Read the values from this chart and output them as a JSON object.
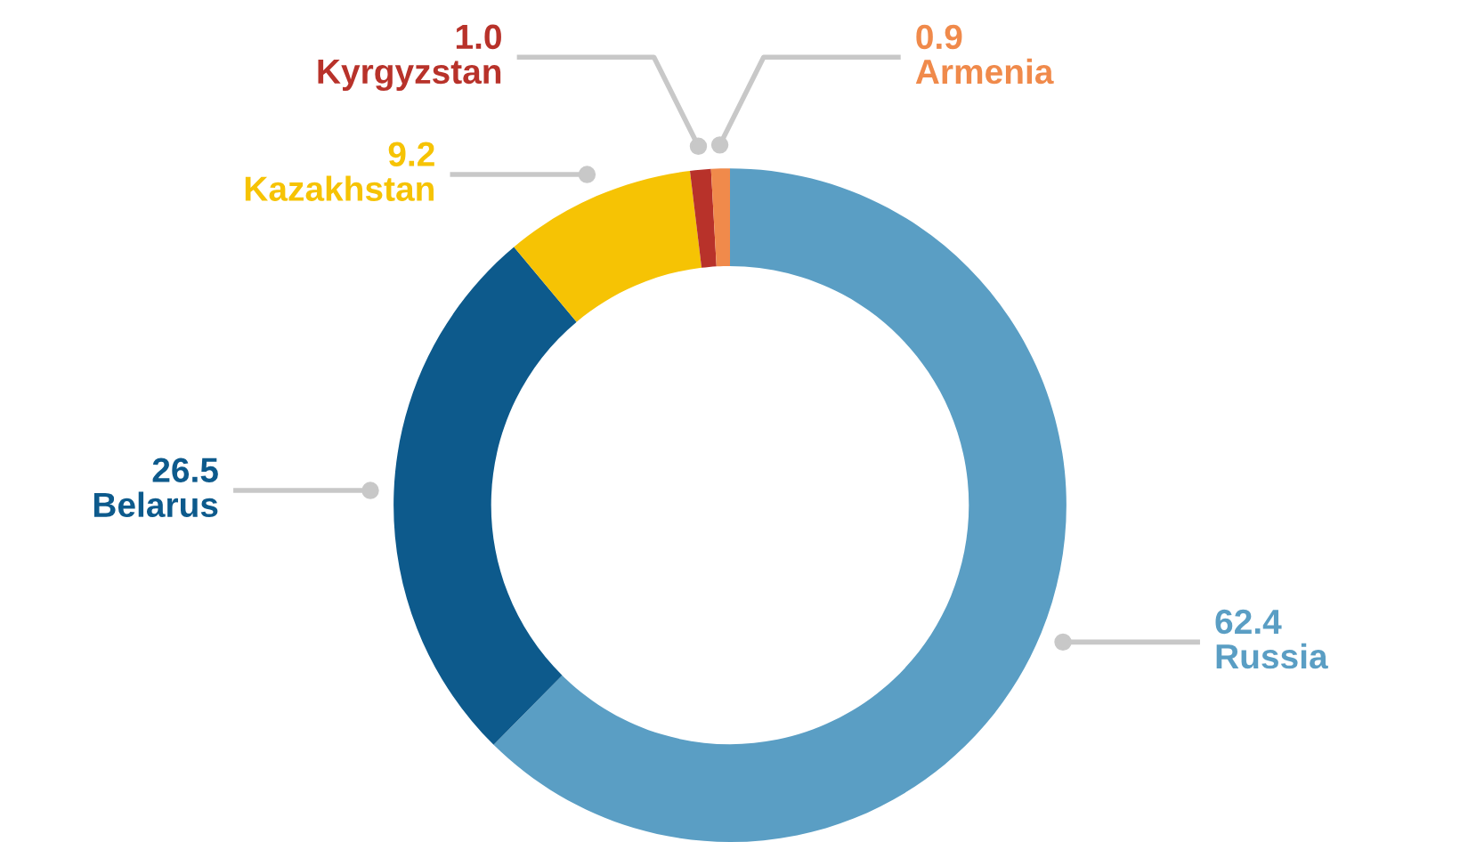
{
  "chart_data": {
    "type": "donut",
    "categories": [
      "Russia",
      "Belarus",
      "Kazakhstan",
      "Kyrgyzstan",
      "Armenia"
    ],
    "values": [
      62.4,
      26.5,
      9.2,
      1.0,
      0.9
    ],
    "value_labels": [
      "62.4",
      "26.5",
      "9.2",
      "1.0",
      "0.9"
    ],
    "colors": [
      "#5a9ec4",
      "#0d5a8c",
      "#f6c304",
      "#b8322a",
      "#f08a4b"
    ],
    "legend": false
  }
}
